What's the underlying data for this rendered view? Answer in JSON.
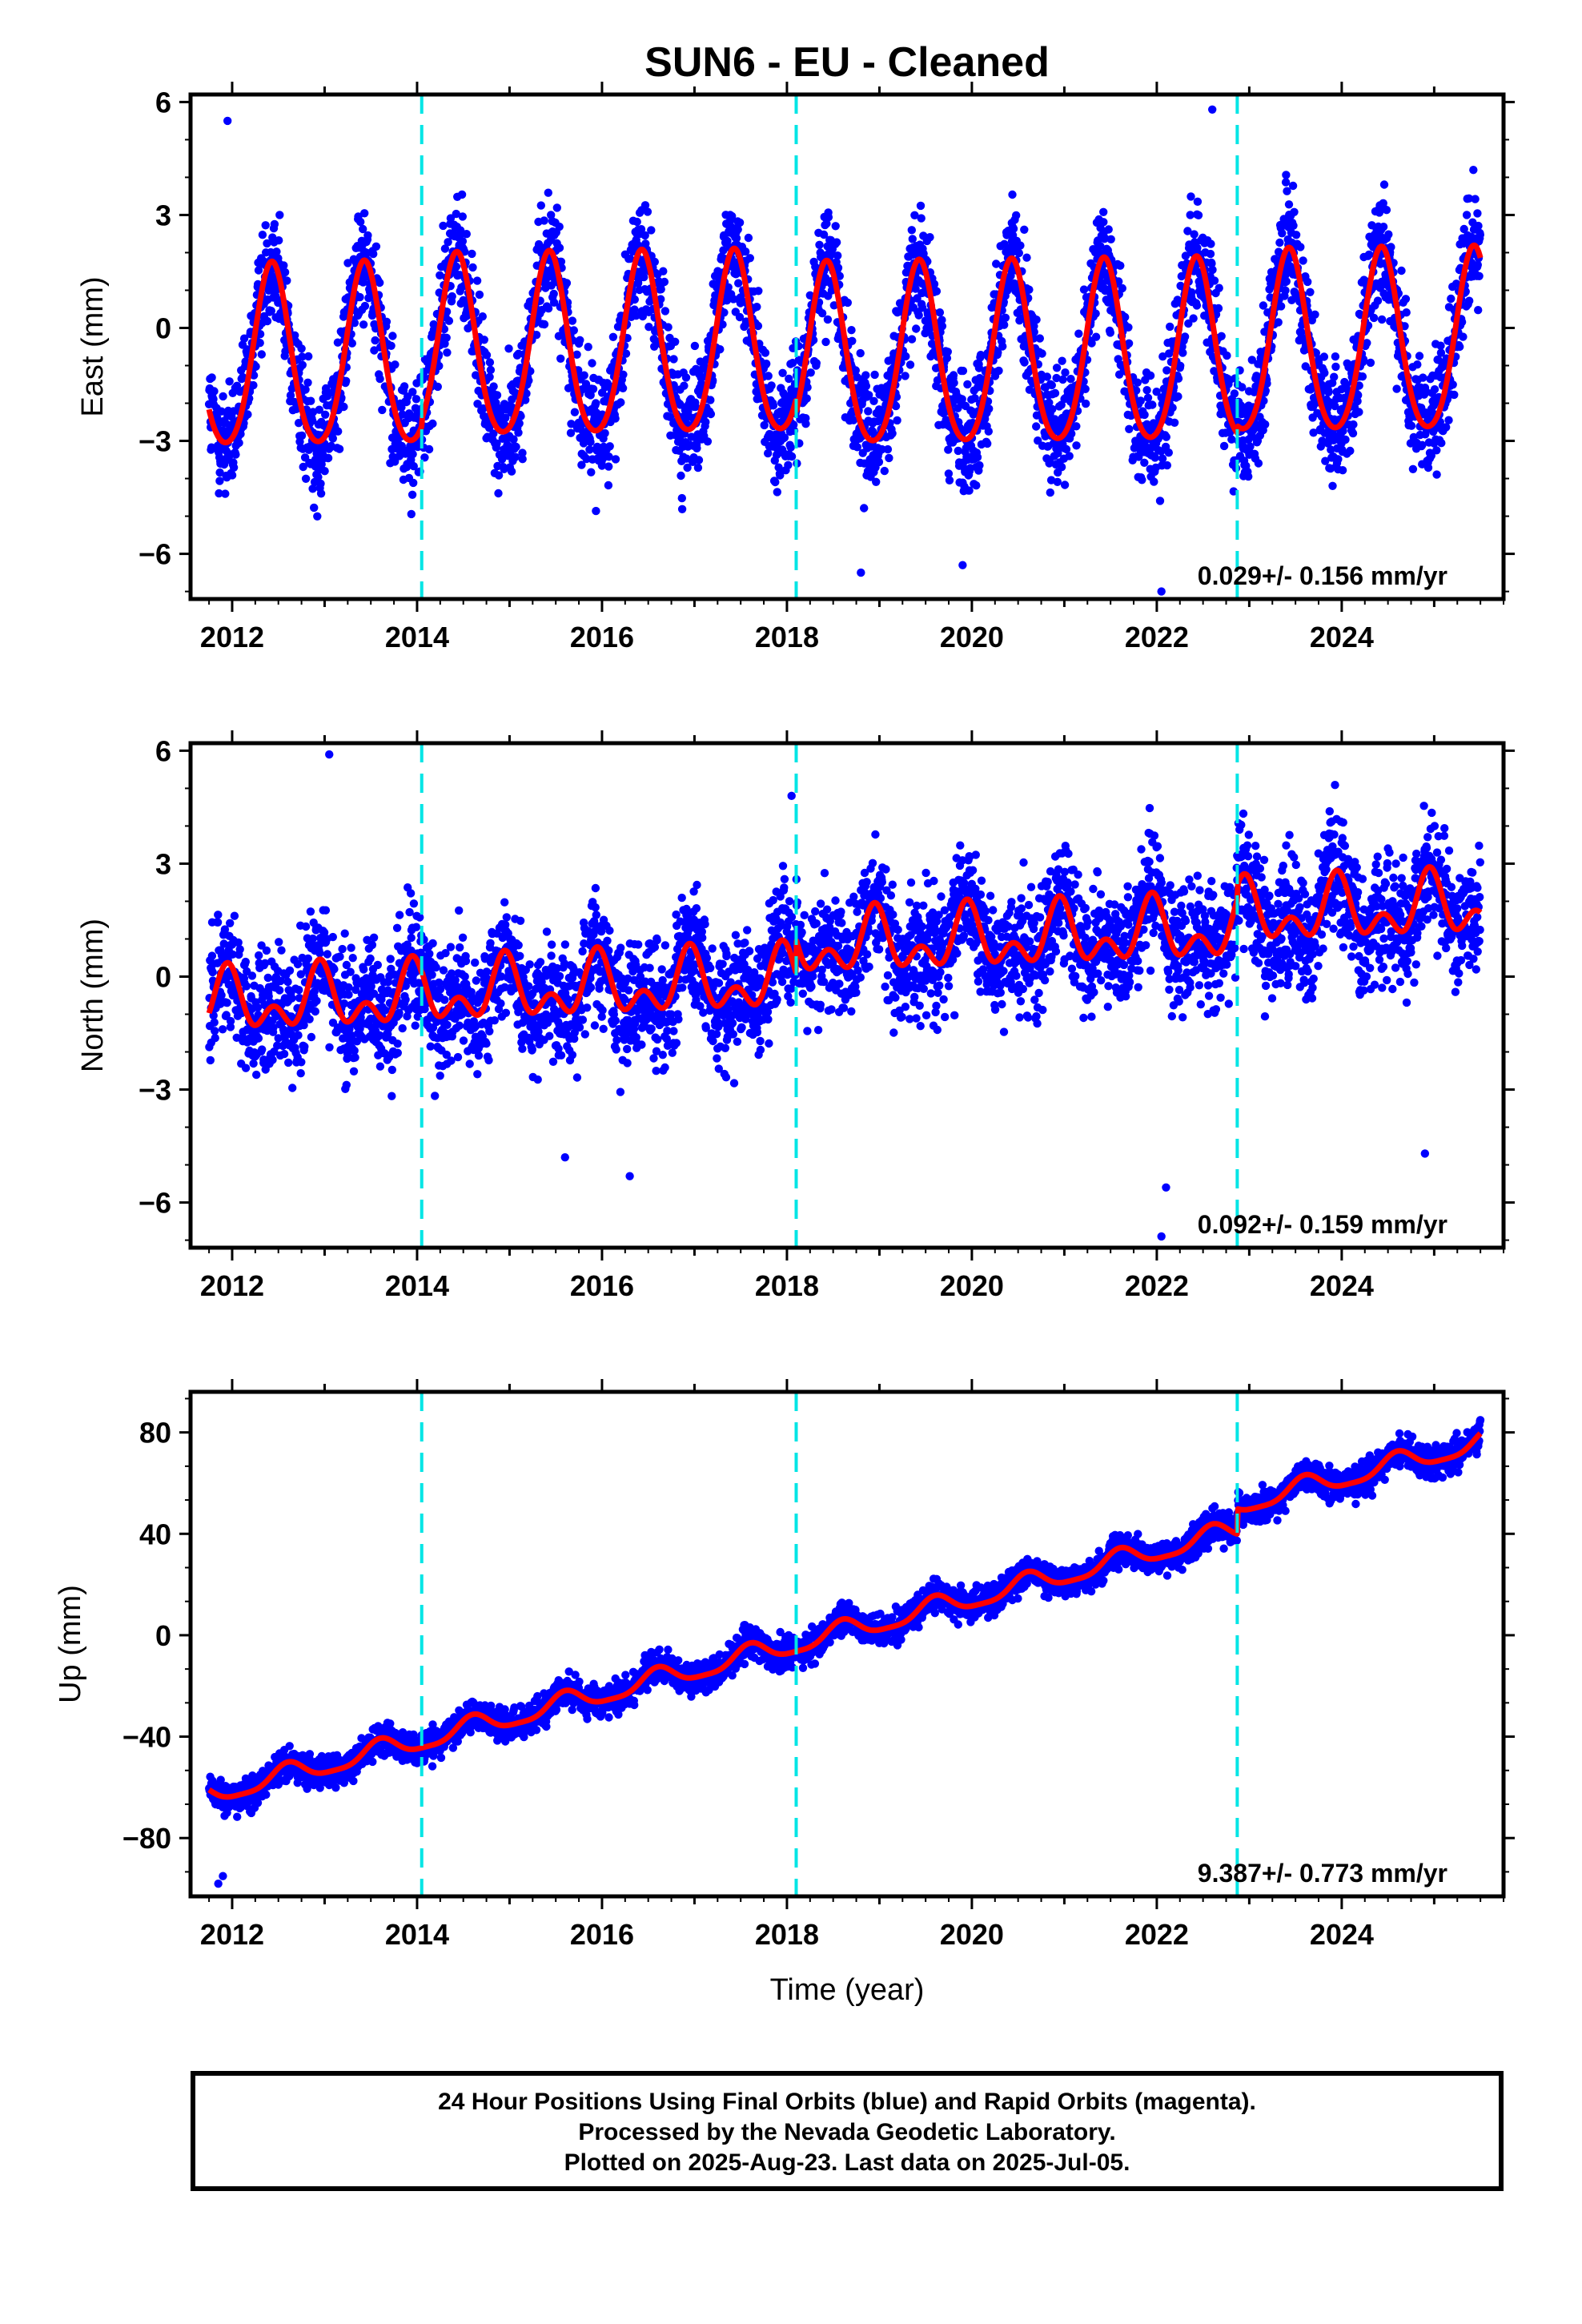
{
  "chart_data": [
    {
      "type": "scatter",
      "title": "SUN6  - EU - Cleaned",
      "ylabel": "East (mm)",
      "xlabel": "",
      "xlim": [
        2011.55,
        2025.75
      ],
      "ylim": [
        -7.2,
        6.2
      ],
      "xticks": [
        "2012",
        "2014",
        "2016",
        "2018",
        "2020",
        "2022",
        "2024"
      ],
      "yticks": [
        "6",
        "3",
        "0",
        "−3",
        "−6"
      ],
      "ytick_values": [
        6,
        3,
        0,
        -3,
        -6
      ],
      "rate_label": "0.029+/- 0.156 mm/yr",
      "breaks": [
        2014.05,
        2018.1,
        2022.87
      ],
      "x_range": [
        2011.75,
        2025.5
      ],
      "model": {
        "slope": 0.029,
        "annual_amplitude": 2.4,
        "annual_phase_peak": 2012.43,
        "semiannual_amplitude": 0.3,
        "offsets": [
          [
            2011.75,
            -0.95
          ],
          [
            2014.05,
            -0.75
          ],
          [
            2018.1,
            -1.1
          ],
          [
            2022.87,
            -0.9
          ]
        ]
      },
      "scatter": {
        "noise_sd": 1.0,
        "points_per_year": 300,
        "outliers": [
          [
            2011.95,
            5.5
          ],
          [
            2022.6,
            5.8
          ],
          [
            2022.05,
            -7.0
          ],
          [
            2019.9,
            -6.3
          ],
          [
            2018.8,
            -6.5
          ]
        ]
      },
      "series": [
        {
          "name": "",
          "color": "#0000ff"
        },
        {
          "name": "",
          "color": "#ff0000"
        }
      ]
    },
    {
      "type": "scatter",
      "title": "",
      "ylabel": "North (mm)",
      "xlabel": "",
      "xlim": [
        2011.55,
        2025.75
      ],
      "ylim": [
        -7.2,
        6.2
      ],
      "xticks": [
        "2012",
        "2014",
        "2016",
        "2018",
        "2020",
        "2022",
        "2024"
      ],
      "yticks": [
        "6",
        "3",
        "0",
        "−3",
        "−6"
      ],
      "ytick_values": [
        6,
        3,
        0,
        -3,
        -6
      ],
      "rate_label": "0.092+/- 0.159 mm/yr",
      "breaks": [
        2014.05,
        2018.1,
        2022.87
      ],
      "x_range": [
        2011.75,
        2025.5
      ],
      "model": {
        "slope": 0.092,
        "annual_amplitude": 0.6,
        "annual_phase_peak": 2012.95,
        "semiannual_amplitude": 0.5,
        "offsets": [
          [
            2011.75,
            -0.75
          ],
          [
            2014.05,
            -0.7
          ],
          [
            2018.1,
            0.2
          ],
          [
            2022.87,
            0.6
          ]
        ]
      },
      "scatter": {
        "noise_sd": 1.05,
        "points_per_year": 300,
        "outliers": [
          [
            2013.05,
            5.9
          ],
          [
            2022.05,
            -6.9
          ],
          [
            2022.1,
            -5.6
          ],
          [
            2015.6,
            -4.8
          ],
          [
            2016.3,
            -5.3
          ],
          [
            2024.9,
            -4.7
          ],
          [
            2018.05,
            4.8
          ]
        ]
      },
      "series": [
        {
          "name": "",
          "color": "#0000ff"
        },
        {
          "name": "",
          "color": "#ff0000"
        }
      ]
    },
    {
      "type": "scatter",
      "title": "",
      "ylabel": "Up (mm)",
      "xlabel": "Time (year)",
      "xlim": [
        2011.55,
        2025.75
      ],
      "ylim": [
        -103,
        96
      ],
      "xticks": [
        "2012",
        "2014",
        "2016",
        "2018",
        "2020",
        "2022",
        "2024"
      ],
      "yticks": [
        "80",
        "40",
        "0",
        "−40",
        "−80"
      ],
      "ytick_values": [
        80,
        40,
        0,
        -40,
        -80
      ],
      "rate_label": "9.387+/- 0.773 mm/yr",
      "breaks": [
        2014.05,
        2018.1,
        2022.87
      ],
      "x_range": [
        2011.75,
        2025.5
      ],
      "model": {
        "slope": 9.387,
        "annual_amplitude": 4.0,
        "annual_phase_peak": 2012.6,
        "semiannual_amplitude": 1.0,
        "offsets": [
          [
            2011.75,
            -63
          ],
          [
            2014.05,
            -63
          ],
          [
            2018.1,
            -63
          ],
          [
            2022.87,
            -53
          ]
        ]
      },
      "scatter": {
        "noise_sd": 4.0,
        "points_per_year": 300,
        "outliers": [
          [
            2011.85,
            -98
          ],
          [
            2011.9,
            -95
          ]
        ]
      },
      "series": [
        {
          "name": "",
          "color": "#0000ff"
        },
        {
          "name": "",
          "color": "#ff0000"
        }
      ]
    }
  ],
  "xticks": [
    "2012",
    "2014",
    "2016",
    "2018",
    "2020",
    "2022",
    "2024"
  ],
  "footer": {
    "line1": "24 Hour Positions Using Final Orbits (blue) and Rapid Orbits (magenta).",
    "line2": "Processed by the Nevada Geodetic Laboratory.",
    "line3": "Plotted on 2025-Aug-23. Last data on 2025-Jul-05."
  },
  "colors": {
    "points": "#0000ff",
    "model": "#ff0000",
    "breaks": "#00e5e5"
  }
}
